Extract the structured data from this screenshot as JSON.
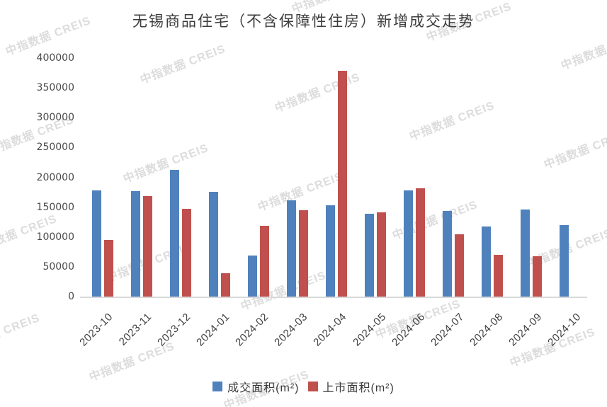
{
  "watermark": {
    "text": "中指数据 CREIS"
  },
  "chart_data": {
    "type": "bar",
    "title": "无锡商品住宅（不含保障性住房）新增成交走势",
    "categories": [
      "2023-10",
      "2023-11",
      "2023-12",
      "2024-01",
      "2024-02",
      "2024-03",
      "2024-04",
      "2024-05",
      "2024-06",
      "2024-07",
      "2024-08",
      "2024-09",
      "2024-10"
    ],
    "series": [
      {
        "name": "成交面积(m²)",
        "color": "#4F81BD",
        "values": [
          178000,
          177000,
          212000,
          176000,
          69000,
          162000,
          153000,
          139000,
          178000,
          144000,
          118000,
          146000,
          120000
        ]
      },
      {
        "name": "上市面积(m²)",
        "color": "#C0504D",
        "values": [
          95000,
          168000,
          147000,
          39000,
          119000,
          145000,
          379000,
          141000,
          182000,
          104000,
          70000,
          68000,
          0
        ]
      }
    ],
    "xlabel": "",
    "ylabel": "",
    "ylim": [
      0,
      400000
    ],
    "ytick_interval": 50000,
    "yticks": [
      "400000",
      "350000",
      "300000",
      "250000",
      "200000",
      "150000",
      "100000",
      "50000",
      "0"
    ],
    "grid": false,
    "legend_position": "bottom",
    "axis_line_color": "#D9D9D9"
  }
}
